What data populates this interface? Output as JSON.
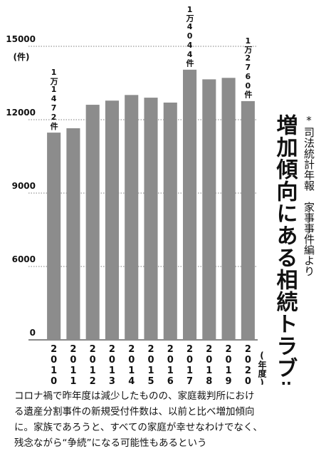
{
  "chart_data": {
    "type": "bar",
    "title": "増加傾向にある相続トラブル",
    "source": "*司法統計年報　家事事件編より",
    "y_unit": "(件)",
    "x_unit": "(年度)",
    "categories": [
      "2010",
      "2011",
      "2012",
      "2013",
      "2014",
      "2015",
      "2016",
      "2017",
      "2018",
      "2019",
      "2020"
    ],
    "values": [
      11472,
      11650,
      12610,
      12780,
      13010,
      12900,
      12700,
      14044,
      13650,
      13710,
      12760
    ],
    "value_labels": [
      "1万1472件",
      null,
      null,
      null,
      null,
      null,
      null,
      "1万4044件",
      null,
      null,
      "1万2760件"
    ],
    "color": "#8c8c8c",
    "ylim": [
      0,
      15000
    ],
    "yticks": [
      0,
      6000,
      9000,
      12000,
      15000
    ],
    "axis_break": true,
    "grid": true
  },
  "caption": [
    "コロナ禍で昨年度は減少したものの、家庭裁判所におけ",
    "る遺産分割事件の新規受付件数は、以前と比べ増加傾向",
    "に。家族であろうと、すべての家庭が幸せなわけでなく、",
    "残念ながら“争続”になる可能性もあるという"
  ]
}
